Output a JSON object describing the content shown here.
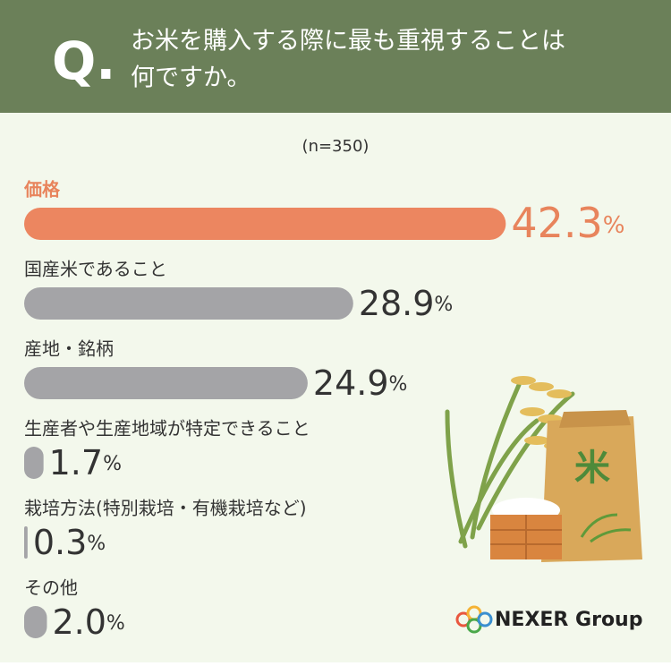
{
  "header": {
    "mark": "Q.",
    "question_lines": [
      "お米を購入する際に最も重視することは",
      "何ですか。"
    ]
  },
  "chart_data": {
    "type": "hbar",
    "note": "(n=350)",
    "categories": [
      "価格",
      "国産米であること",
      "産地・銘柄",
      "生産者や生産地域が特定できること",
      "栽培方法(特別栽培・有機栽培など)",
      "その他"
    ],
    "values": [
      42.3,
      28.9,
      24.9,
      1.7,
      0.3,
      2.0
    ],
    "value_labels": [
      "42.3",
      "28.9",
      "24.9",
      "1.7",
      "0.3",
      "2.0"
    ],
    "unit": "%",
    "xlim": [
      0,
      44
    ],
    "colors": [
      "#ec8660",
      "#a4a4a7",
      "#a4a4a7",
      "#a4a4a7",
      "#a4a4a7",
      "#a4a4a7"
    ],
    "label_colors": [
      "#e8845c",
      "#333333",
      "#333333",
      "#333333",
      "#333333",
      "#333333"
    ]
  },
  "logo": "NEXER Group"
}
